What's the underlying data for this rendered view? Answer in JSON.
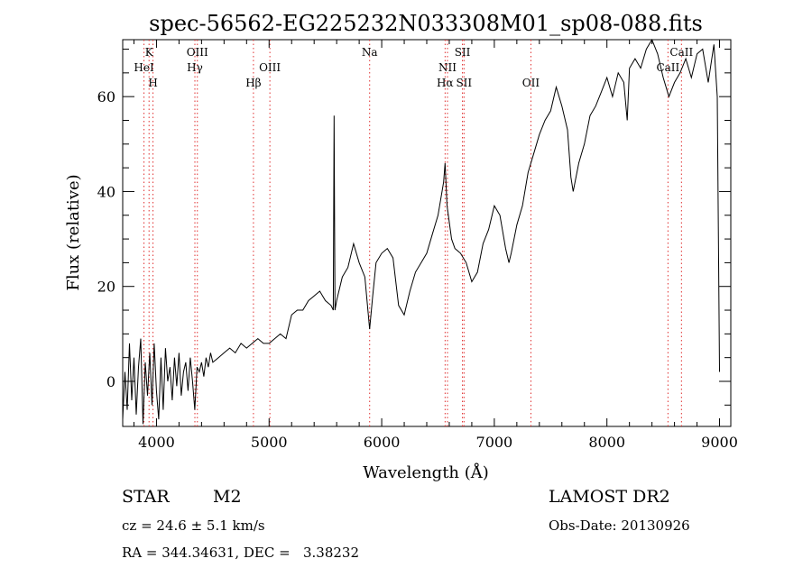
{
  "chart_data": {
    "type": "line",
    "title": "spec-56562-EG225232N033308M01_sp08-088.fits",
    "xlabel": "Wavelength (Å)",
    "ylabel": "Flux (relative)",
    "xlim": [
      3700,
      9100
    ],
    "ylim": [
      -9.5,
      72
    ],
    "x_ticks": [
      4000,
      5000,
      6000,
      7000,
      8000,
      9000
    ],
    "y_ticks": [
      0,
      20,
      40,
      60
    ],
    "grid": false,
    "legend": "none",
    "series": [
      {
        "color": "#000000",
        "x": [
          3700,
          3720,
          3740,
          3760,
          3780,
          3800,
          3820,
          3840,
          3860,
          3880,
          3900,
          3920,
          3940,
          3960,
          3980,
          4000,
          4020,
          4040,
          4060,
          4080,
          4100,
          4120,
          4140,
          4160,
          4180,
          4200,
          4220,
          4240,
          4260,
          4280,
          4300,
          4320,
          4340,
          4360,
          4380,
          4400,
          4420,
          4440,
          4460,
          4480,
          4500,
          4550,
          4600,
          4650,
          4700,
          4750,
          4800,
          4850,
          4900,
          4950,
          5000,
          5050,
          5100,
          5150,
          5200,
          5250,
          5300,
          5350,
          5400,
          5450,
          5500,
          5550,
          5570,
          5577,
          5585,
          5600,
          5650,
          5700,
          5750,
          5800,
          5850,
          5893,
          5920,
          5950,
          6000,
          6050,
          6100,
          6150,
          6200,
          6250,
          6300,
          6350,
          6400,
          6450,
          6500,
          6550,
          6563,
          6580,
          6620,
          6650,
          6700,
          6750,
          6800,
          6850,
          6900,
          6950,
          7000,
          7050,
          7100,
          7130,
          7150,
          7200,
          7250,
          7300,
          7350,
          7400,
          7450,
          7500,
          7550,
          7600,
          7650,
          7680,
          7700,
          7750,
          7800,
          7850,
          7900,
          7950,
          8000,
          8050,
          8100,
          8150,
          8180,
          8200,
          8250,
          8300,
          8350,
          8400,
          8450,
          8500,
          8550,
          8600,
          8650,
          8700,
          8750,
          8800,
          8850,
          8900,
          8950,
          8980,
          9000
        ],
        "y": [
          -8,
          2,
          -6,
          8,
          -4,
          5,
          -7,
          3,
          9,
          -9,
          4,
          -3,
          6,
          -5,
          8,
          -2,
          -8,
          5,
          -6,
          7,
          0,
          3,
          -4,
          5,
          -1,
          6,
          -3,
          2,
          4,
          -2,
          5,
          0,
          -6,
          3,
          2,
          4,
          1,
          5,
          3,
          6,
          4,
          5,
          6,
          7,
          6,
          8,
          7,
          8,
          9,
          8,
          8,
          9,
          10,
          9,
          14,
          15,
          15,
          17,
          18,
          19,
          17,
          16,
          15,
          56,
          15,
          17,
          22,
          24,
          29,
          25,
          22,
          11,
          18,
          25,
          27,
          28,
          26,
          16,
          14,
          19,
          23,
          25,
          27,
          31,
          35,
          42,
          46,
          37,
          30,
          28,
          27,
          25,
          21,
          23,
          29,
          32,
          37,
          35,
          28,
          25,
          27,
          33,
          37,
          44,
          48,
          52,
          55,
          57,
          62,
          58,
          53,
          43,
          40,
          46,
          50,
          56,
          58,
          61,
          64,
          60,
          65,
          63,
          55,
          66,
          68,
          66,
          70,
          72,
          69,
          64,
          60,
          63,
          65,
          68,
          64,
          69,
          70,
          63,
          71,
          60,
          2
        ]
      }
    ],
    "annotations": [
      {
        "label": "K",
        "x": 3934,
        "row": 1
      },
      {
        "label": "HeI",
        "x": 3889,
        "row": 2
      },
      {
        "label": "H",
        "x": 3969,
        "row": 3
      },
      {
        "label": "OIII",
        "x": 4363,
        "row": 1
      },
      {
        "label": "Hγ",
        "x": 4341,
        "row": 2
      },
      {
        "label": "OIII",
        "x": 5007,
        "row": 2
      },
      {
        "label": "Hβ",
        "x": 4861,
        "row": 3
      },
      {
        "label": "Na",
        "x": 5893,
        "row": 1
      },
      {
        "label": "SII",
        "x": 6717,
        "row": 1
      },
      {
        "label": "NII",
        "x": 6584,
        "row": 2
      },
      {
        "label": "Hα",
        "x": 6563,
        "row": 3
      },
      {
        "label": "SII",
        "x": 6731,
        "row": 3
      },
      {
        "label": "OII",
        "x": 7325,
        "row": 3
      },
      {
        "label": "CaII",
        "x": 8662,
        "row": 1
      },
      {
        "label": "CaII",
        "x": 8542,
        "row": 2
      }
    ],
    "line_markers": [
      3889,
      3934,
      3969,
      4341,
      4363,
      4861,
      5007,
      5893,
      6563,
      6584,
      6717,
      6731,
      7325,
      8542,
      8662
    ]
  },
  "info": {
    "object_class": "STAR",
    "subclass": "M2",
    "survey": "LAMOST DR2",
    "velocity": "cz = 24.6 ± 5.1 km/s",
    "obs_date": "Obs-Date: 20130926",
    "coords": "RA = 344.34631, DEC =   3.38232"
  }
}
